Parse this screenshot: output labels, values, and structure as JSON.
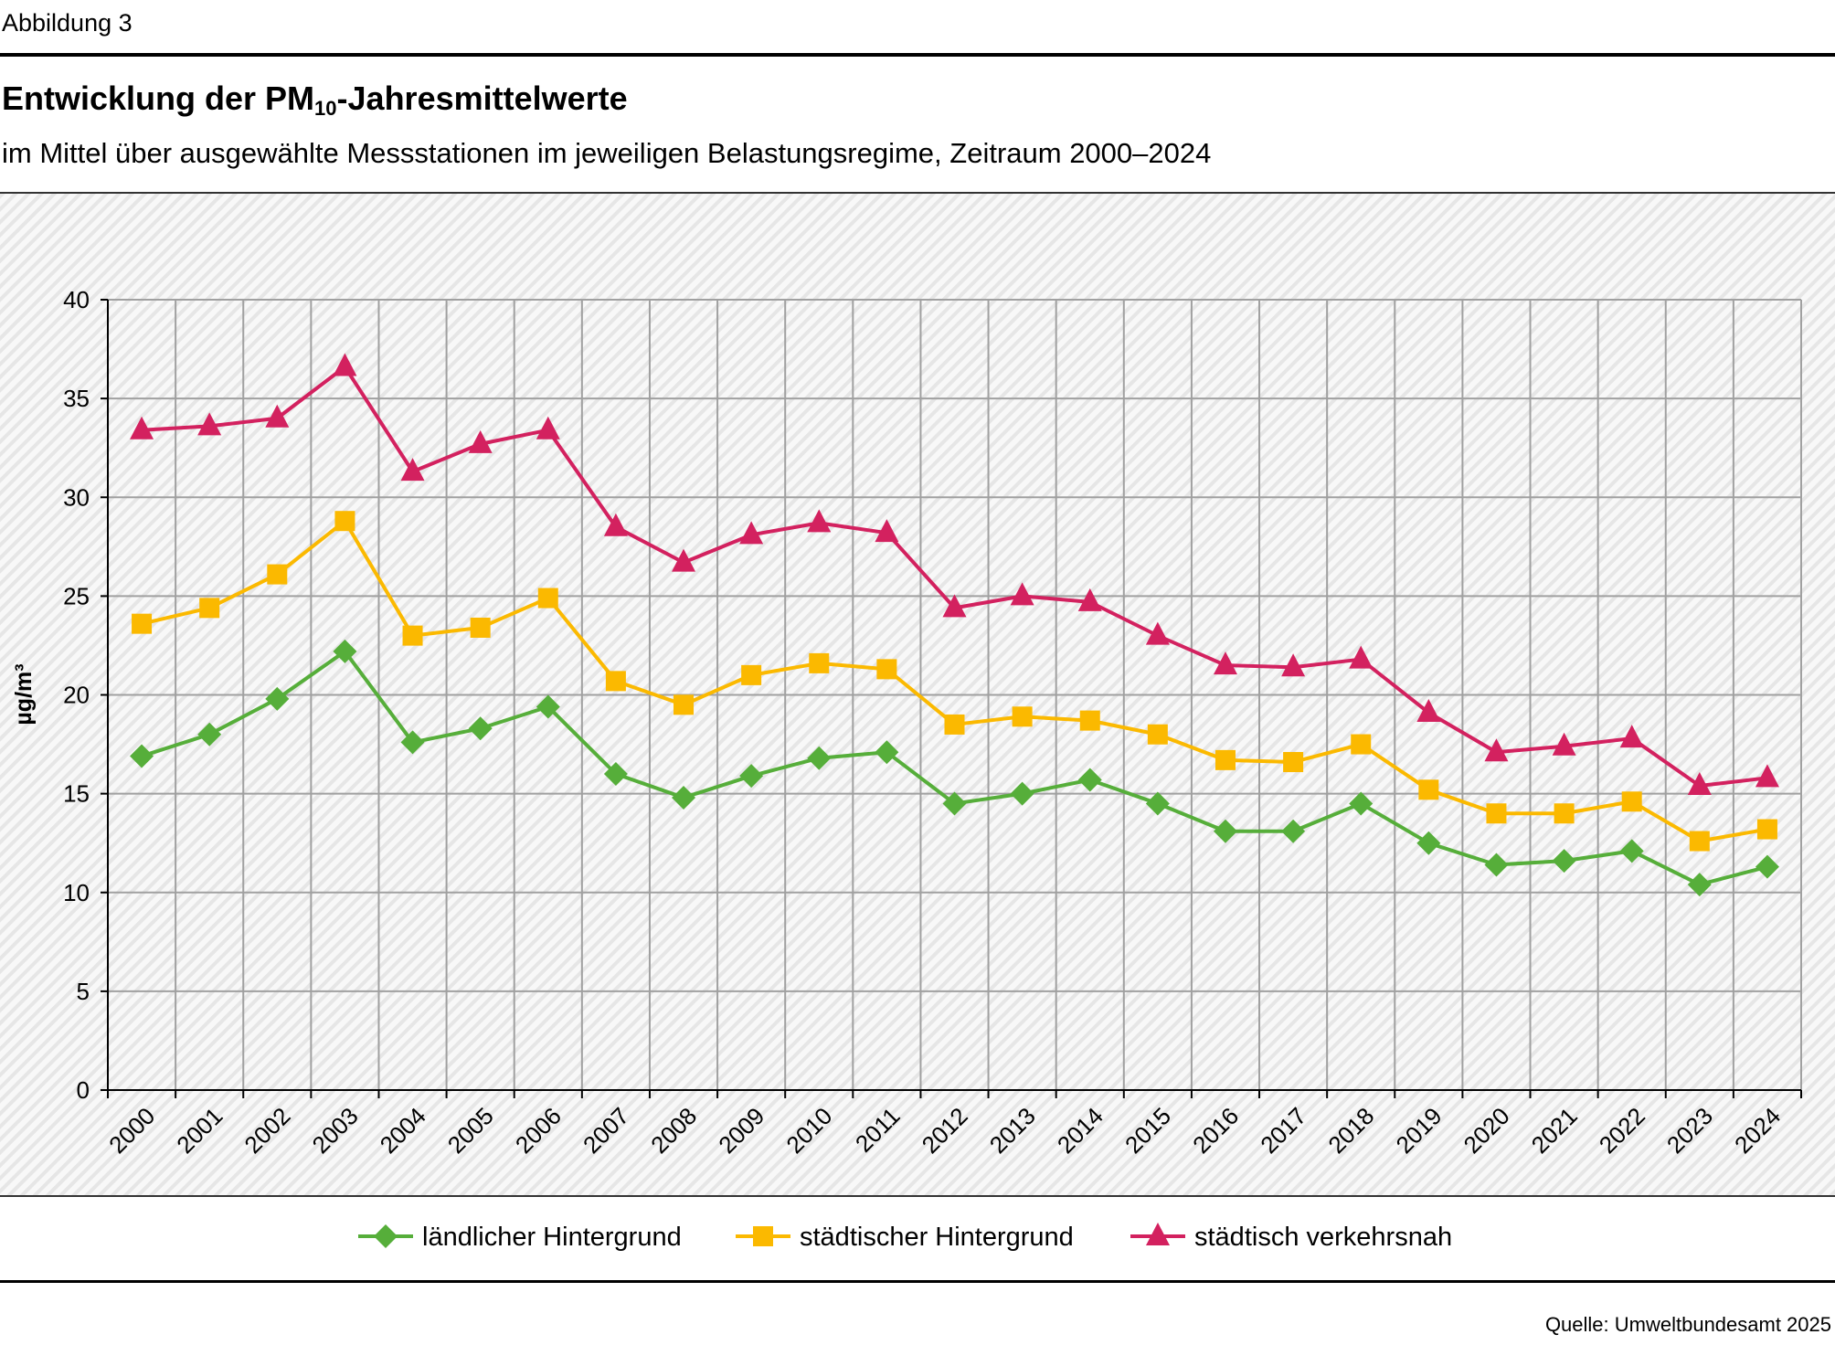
{
  "figure_label": "Abbildung 3",
  "title_main": "Entwicklung der PM",
  "title_sub": "10",
  "title_rest": "-Jahresmittelwerte",
  "subtitle": "im Mittel über ausgewählte Messstationen im jeweiligen Belastungsregime, Zeitraum 2000–2024",
  "source": "Quelle: Umweltbundesamt 2025",
  "chart_data": {
    "type": "line",
    "title": "Entwicklung der PM10-Jahresmittelwerte",
    "subtitle": "im Mittel über ausgewählte Messstationen im jeweiligen Belastungsregime, Zeitraum 2000–2024",
    "xlabel": "",
    "ylabel": "µg/m³",
    "ylim": [
      0,
      40
    ],
    "yticks": [
      0,
      5,
      10,
      15,
      20,
      25,
      30,
      35,
      40
    ],
    "grid": true,
    "legend_position": "bottom",
    "categories": [
      "2000",
      "2001",
      "2002",
      "2003",
      "2004",
      "2005",
      "2006",
      "2007",
      "2008",
      "2009",
      "2010",
      "2011",
      "2012",
      "2013",
      "2014",
      "2015",
      "2016",
      "2017",
      "2018",
      "2019",
      "2020",
      "2021",
      "2022",
      "2023",
      "2024"
    ],
    "series": [
      {
        "name": "ländlicher Hintergrund",
        "marker": "diamond",
        "color": "#56ae3a",
        "values": [
          16.9,
          18.0,
          19.8,
          22.2,
          17.6,
          18.3,
          19.4,
          16.0,
          14.8,
          15.9,
          16.8,
          17.1,
          14.5,
          15.0,
          15.7,
          14.5,
          13.1,
          13.1,
          14.5,
          12.5,
          11.4,
          11.6,
          12.1,
          10.4,
          11.3
        ]
      },
      {
        "name": "städtischer Hintergrund",
        "marker": "square",
        "color": "#fbb900",
        "values": [
          23.6,
          24.4,
          26.1,
          28.8,
          23.0,
          23.4,
          24.9,
          20.7,
          19.5,
          21.0,
          21.6,
          21.3,
          18.5,
          18.9,
          18.7,
          18.0,
          16.7,
          16.6,
          17.5,
          15.2,
          14.0,
          14.0,
          14.6,
          12.6,
          13.2
        ]
      },
      {
        "name": "städtisch verkehrsnah",
        "marker": "triangle",
        "color": "#d3215f",
        "values": [
          33.4,
          33.6,
          34.0,
          36.6,
          31.3,
          32.7,
          33.4,
          28.5,
          26.7,
          28.1,
          28.7,
          28.2,
          24.4,
          25.0,
          24.7,
          23.0,
          21.5,
          21.4,
          21.8,
          19.1,
          17.1,
          17.4,
          17.8,
          15.4,
          15.8
        ]
      }
    ]
  }
}
